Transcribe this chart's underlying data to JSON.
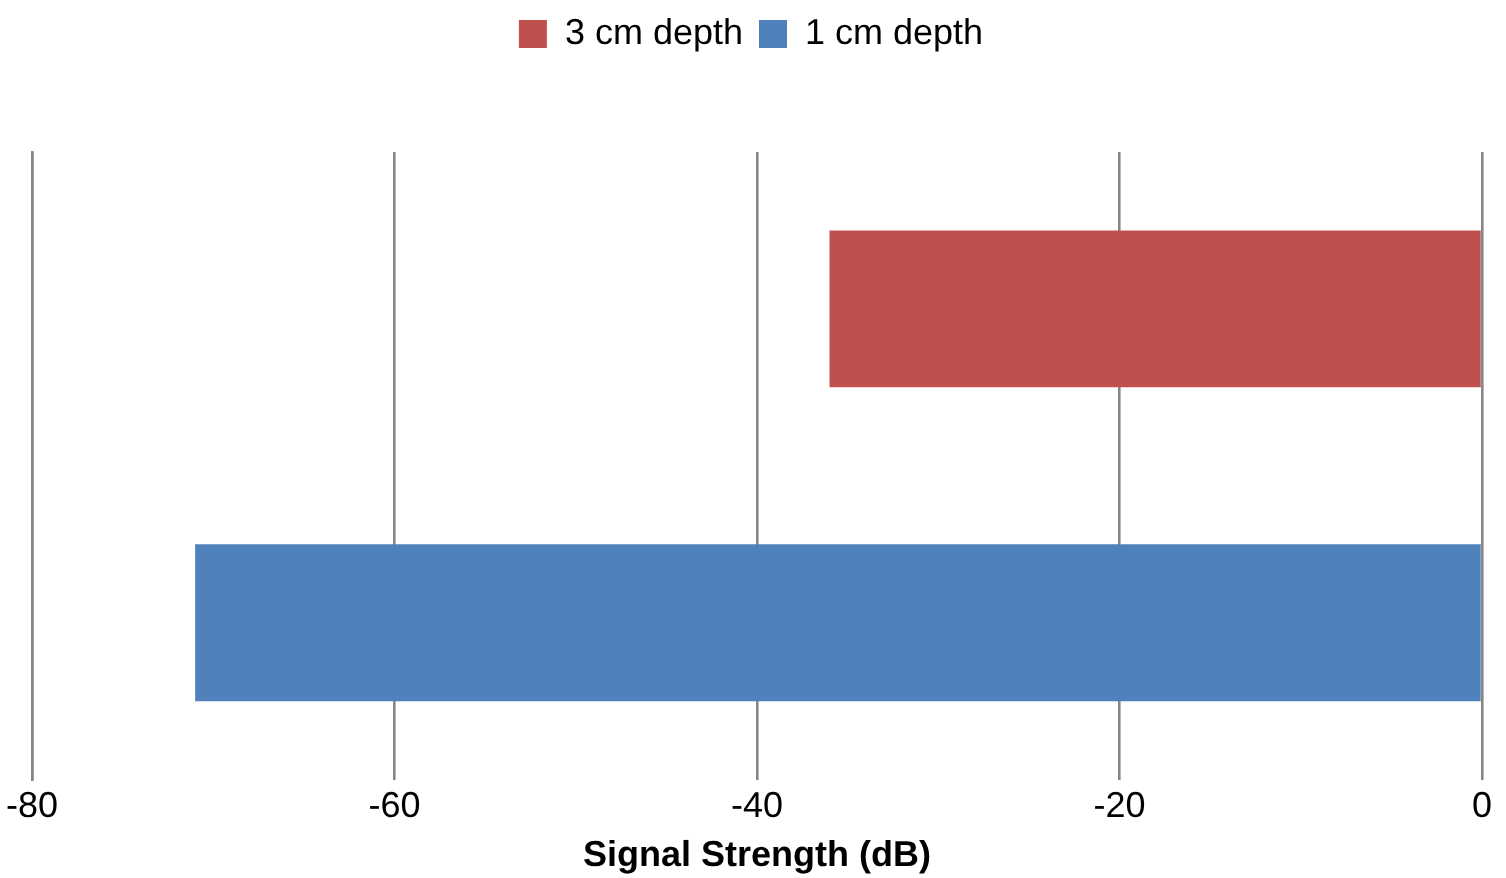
{
  "chart_data": {
    "type": "bar",
    "orientation": "horizontal",
    "xlabel": "Signal Strength (dB)",
    "categories": [
      null,
      null
    ],
    "series": [
      {
        "name": "3 cm depth",
        "color": "#c0504d",
        "values": [
          -36,
          null
        ]
      },
      {
        "name": "1 cm depth",
        "color": "#4f81bd",
        "values": [
          null,
          -71
        ]
      }
    ],
    "xlim": [
      -80,
      0
    ],
    "xticks": [
      -80,
      -60,
      -40,
      -20,
      0
    ],
    "grid": "x",
    "legend": "top"
  }
}
